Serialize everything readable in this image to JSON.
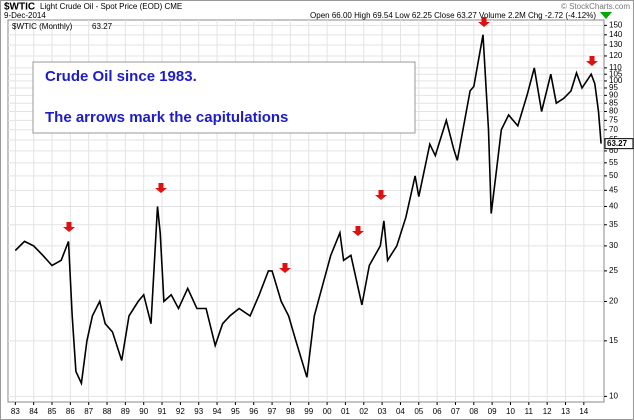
{
  "chart_data": {
    "type": "line",
    "symbol": "$WTIC",
    "title": "Light Crude Oil - Spot Price (EOD) CME",
    "date": "9-Dec-2014",
    "quote_line": "Open 66.00 High 69.54 Low 62.25 Close 63.27 Volume 2.2M Chg -2.72 (-4.12%)",
    "credit": "© StockCharts.com",
    "annotations": [
      "Crude Oil since 1983.",
      "The arrows mark the capitulations"
    ],
    "last_label": "63.27",
    "log_scale": true,
    "grid": true,
    "x": [
      1983.0,
      1983.5,
      1984.0,
      1984.5,
      1985.0,
      1985.5,
      1985.9,
      1986.1,
      1986.3,
      1986.6,
      1986.9,
      1987.2,
      1987.6,
      1987.9,
      1988.3,
      1988.8,
      1989.2,
      1989.7,
      1990.0,
      1990.4,
      1990.75,
      1990.9,
      1991.1,
      1991.5,
      1991.9,
      1992.4,
      1992.9,
      1993.4,
      1993.9,
      1994.3,
      1994.7,
      1995.2,
      1995.8,
      1996.3,
      1996.8,
      1997.0,
      1997.5,
      1997.9,
      1998.3,
      1998.9,
      1999.3,
      1999.8,
      2000.2,
      2000.7,
      2000.9,
      2001.3,
      2001.9,
      2002.3,
      2002.9,
      2003.1,
      2003.3,
      2003.8,
      2004.3,
      2004.8,
      2005.0,
      2005.6,
      2005.9,
      2006.5,
      2006.9,
      2007.1,
      2007.8,
      2008.0,
      2008.5,
      2008.8,
      2008.95,
      2009.2,
      2009.5,
      2009.9,
      2010.4,
      2010.9,
      2011.3,
      2011.7,
      2012.2,
      2012.5,
      2012.9,
      2013.3,
      2013.6,
      2013.9,
      2014.4,
      2014.6,
      2014.8,
      2014.94
    ],
    "series": [
      {
        "name": "$WTIC (Monthly)",
        "color": "#000000",
        "values": [
          29,
          31,
          30,
          28,
          26,
          27,
          31,
          18,
          12,
          11,
          15,
          18,
          20,
          17,
          16,
          13,
          18,
          20,
          21,
          17,
          40,
          33,
          20,
          21,
          19,
          22,
          19,
          19,
          14.5,
          17,
          18,
          19,
          18,
          21,
          25,
          25,
          20,
          18,
          15,
          11.5,
          18,
          23,
          28,
          33,
          27,
          28,
          19.5,
          26,
          30,
          36,
          27,
          30,
          37,
          50,
          43,
          63,
          58,
          75,
          61,
          56,
          93,
          96,
          140,
          70,
          38,
          50,
          70,
          78,
          72,
          90,
          110,
          80,
          105,
          85,
          88,
          93,
          106,
          95,
          105,
          98,
          80,
          63.27
        ]
      }
    ],
    "xlim": [
      1982.6,
      2015.1
    ],
    "xticks": [
      {
        "value": 1983,
        "label": "83"
      },
      {
        "value": 1984,
        "label": "84"
      },
      {
        "value": 1985,
        "label": "85"
      },
      {
        "value": 1986,
        "label": "86"
      },
      {
        "value": 1987,
        "label": "87"
      },
      {
        "value": 1988,
        "label": "88"
      },
      {
        "value": 1989,
        "label": "89"
      },
      {
        "value": 1990,
        "label": "90"
      },
      {
        "value": 1991,
        "label": "91"
      },
      {
        "value": 1992,
        "label": "92"
      },
      {
        "value": 1993,
        "label": "93"
      },
      {
        "value": 1994,
        "label": "94"
      },
      {
        "value": 1995,
        "label": "95"
      },
      {
        "value": 1996,
        "label": "96"
      },
      {
        "value": 1997,
        "label": "97"
      },
      {
        "value": 1998,
        "label": "98"
      },
      {
        "value": 1999,
        "label": "99"
      },
      {
        "value": 2000,
        "label": "00"
      },
      {
        "value": 2001,
        "label": "01"
      },
      {
        "value": 2002,
        "label": "02"
      },
      {
        "value": 2003,
        "label": "03"
      },
      {
        "value": 2004,
        "label": "04"
      },
      {
        "value": 2005,
        "label": "05"
      },
      {
        "value": 2006,
        "label": "06"
      },
      {
        "value": 2007,
        "label": "07"
      },
      {
        "value": 2008,
        "label": "08"
      },
      {
        "value": 2009,
        "label": "09"
      },
      {
        "value": 2010,
        "label": "10"
      },
      {
        "value": 2011,
        "label": "11"
      },
      {
        "value": 2012,
        "label": "12"
      },
      {
        "value": 2013,
        "label": "13"
      },
      {
        "value": 2014,
        "label": "14"
      }
    ],
    "ylim": [
      9.6,
      156
    ],
    "yticks": [
      10,
      15,
      20,
      25,
      30,
      35,
      40,
      45,
      50,
      55,
      60,
      65,
      70,
      75,
      80,
      85,
      90,
      95,
      100,
      105,
      110,
      120,
      130,
      140,
      150
    ]
  }
}
